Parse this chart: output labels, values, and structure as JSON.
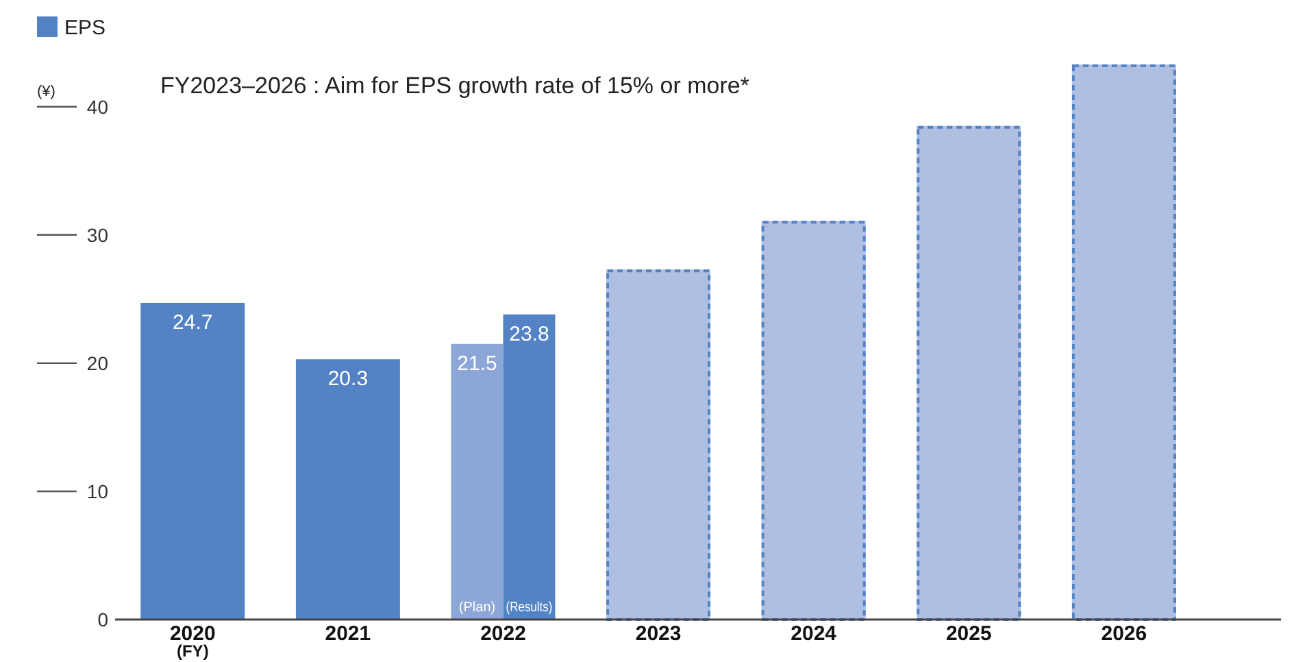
{
  "chart_data": {
    "type": "bar",
    "title": "FY2023–2026 : Aim for EPS growth rate of 15% or more*",
    "ylabel": "(¥)",
    "xlabel": "(FY)",
    "categories": [
      "2020",
      "2021",
      "2022",
      "2023",
      "2024",
      "2025",
      "2026"
    ],
    "series": [
      {
        "name": "EPS",
        "color": "#5383c4",
        "values": [
          24.7,
          20.3,
          null,
          null,
          null,
          null,
          null
        ],
        "value_labels": [
          "24.7",
          "20.3",
          null,
          null,
          null,
          null,
          null
        ]
      },
      {
        "name": "(Plan)",
        "color": "#8ca6d8",
        "values": [
          null,
          null,
          21.5,
          null,
          null,
          null,
          null
        ],
        "value_labels": [
          null,
          null,
          "21.5",
          null,
          null,
          null,
          null
        ]
      },
      {
        "name": "(Results)",
        "color": "#5383c4",
        "values": [
          null,
          null,
          23.8,
          null,
          null,
          null,
          null
        ],
        "value_labels": [
          null,
          null,
          "23.8",
          null,
          null,
          null,
          null
        ]
      },
      {
        "color": "#aebfe2",
        "line_style": "dashed",
        "values": [
          null,
          null,
          null,
          27.3,
          31.1,
          38.5,
          43.3
        ]
      }
    ],
    "ylim": [
      0,
      43.3
    ],
    "yticks": [
      0,
      10,
      20,
      30,
      40
    ],
    "legend": "top left"
  }
}
